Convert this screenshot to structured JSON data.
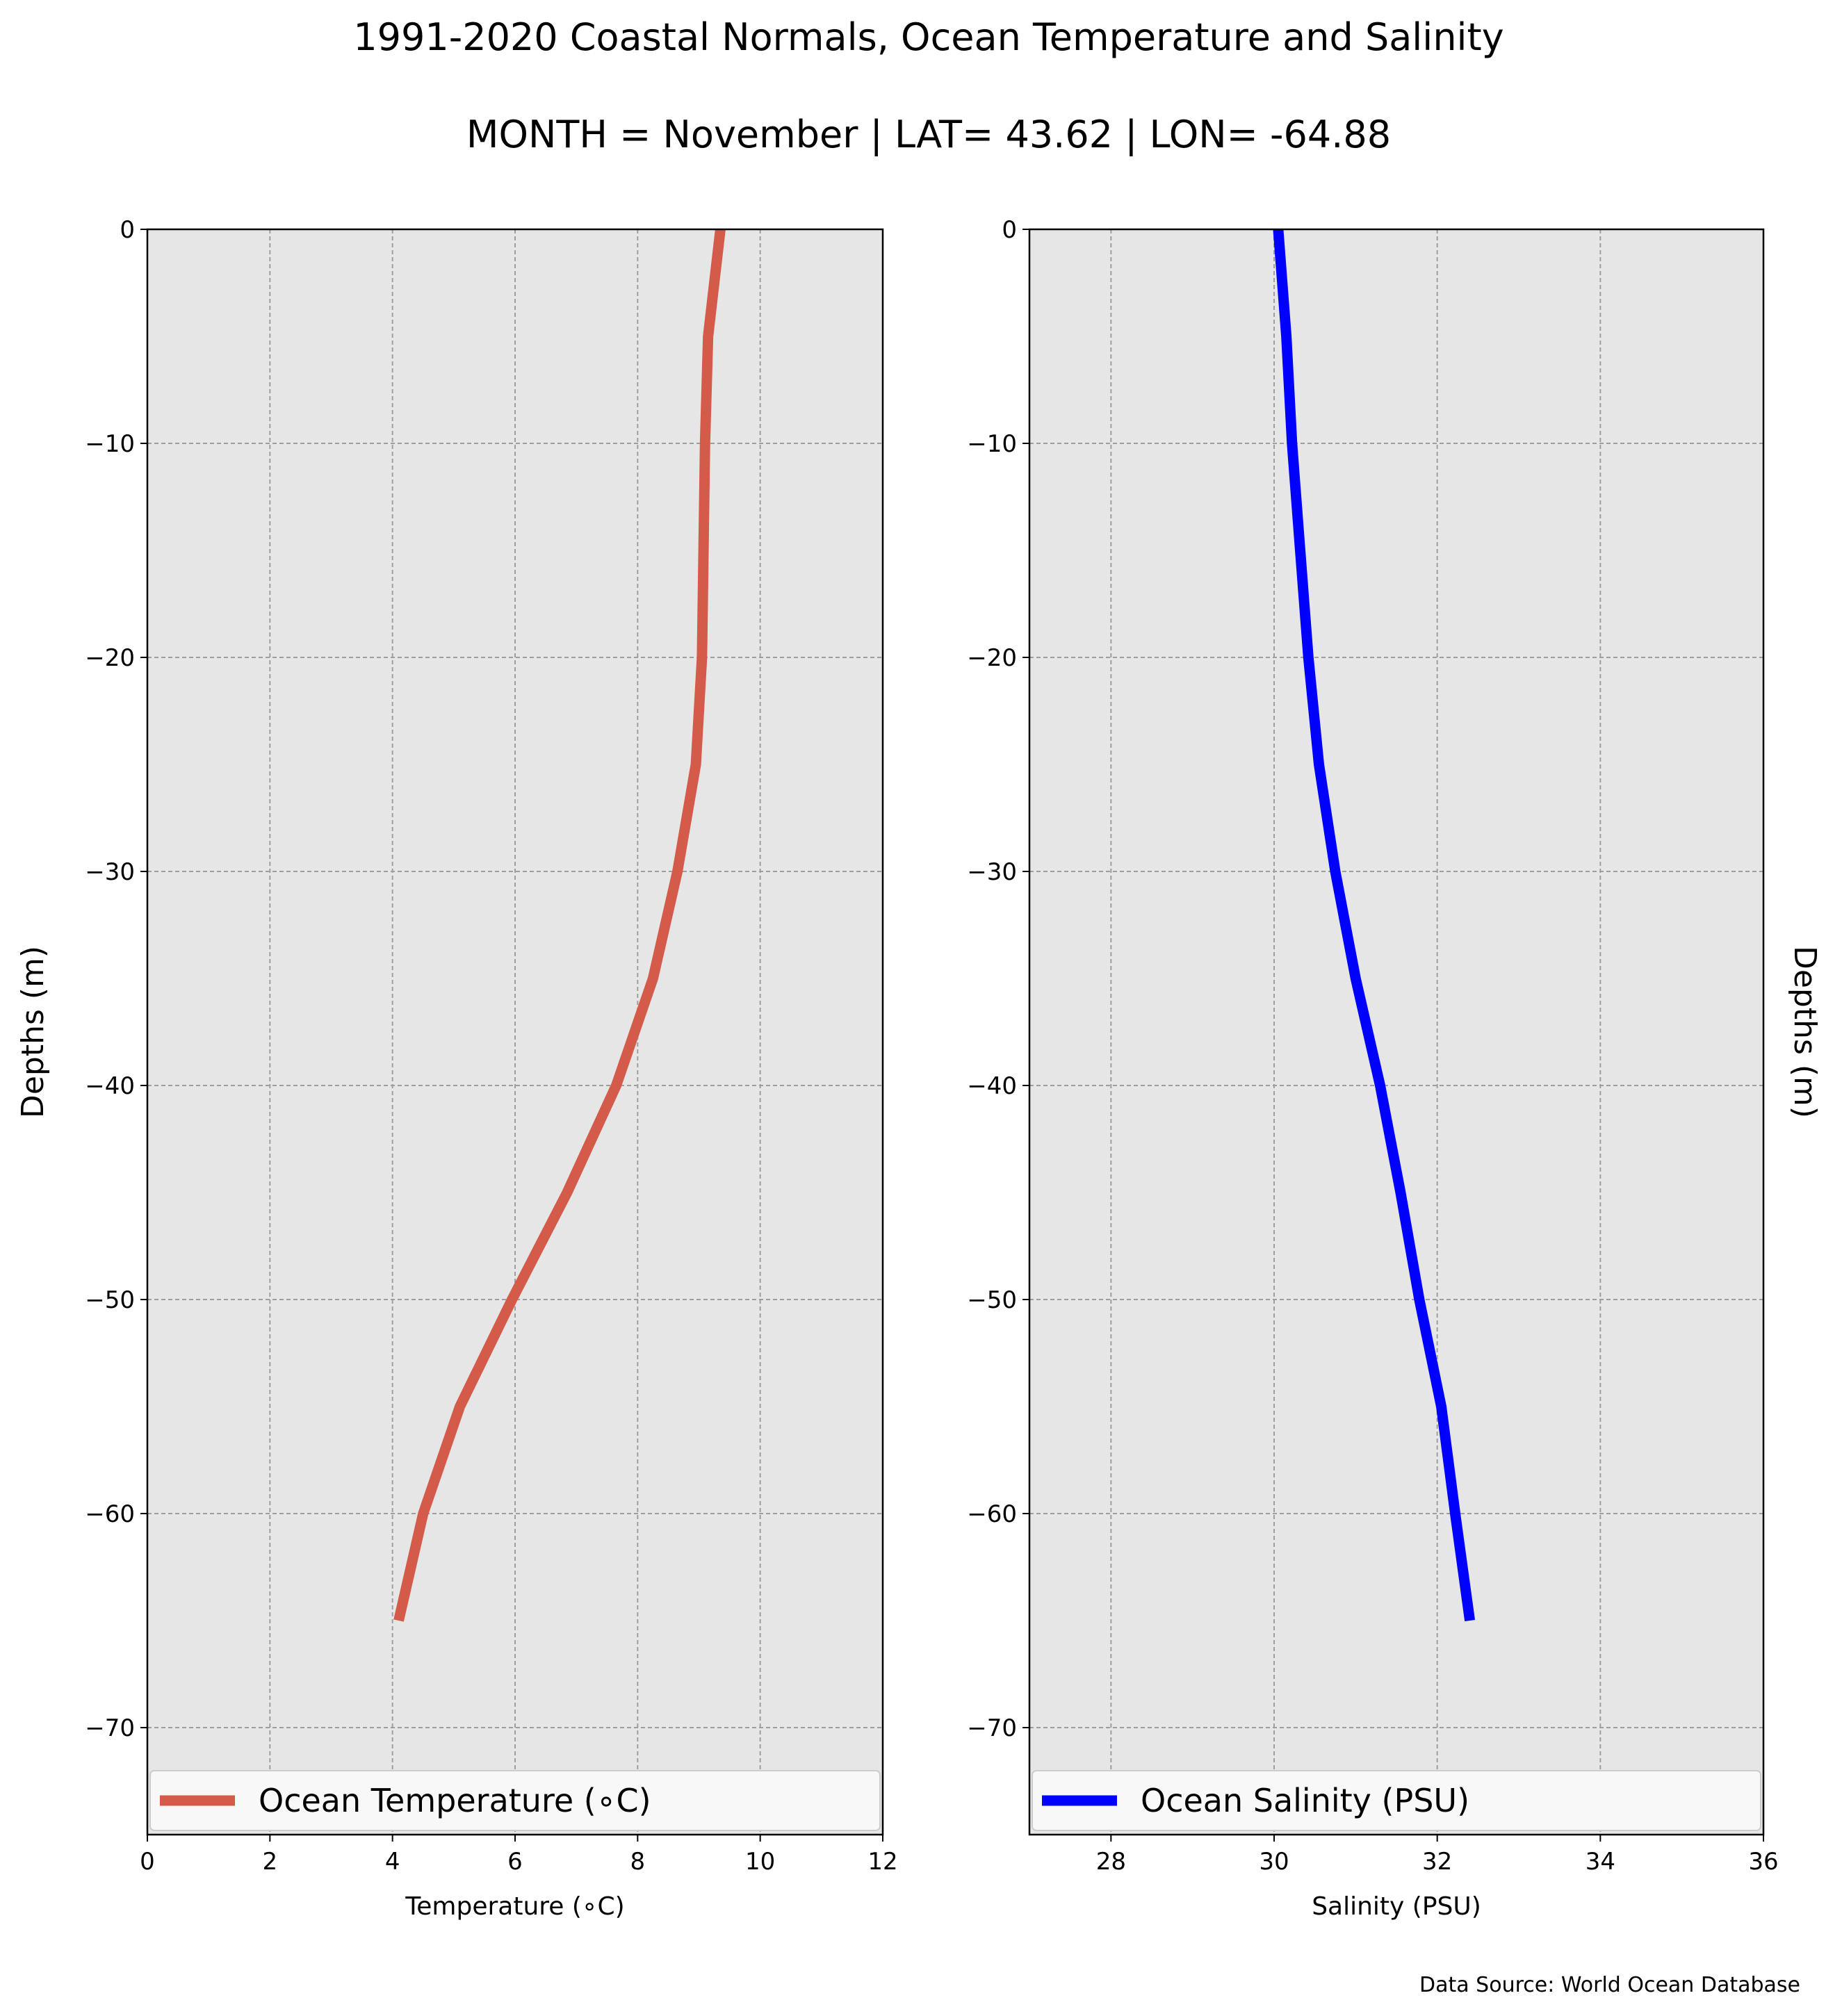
{
  "figure": {
    "title": "1991-2020 Coastal Normals, Ocean Temperature and Salinity",
    "subtitle": "MONTH = November | LAT= 43.62 | LON= -64.88",
    "source": "Data Source: World Ocean Database"
  },
  "chart_data": [
    {
      "type": "line",
      "xlabel": "Temperature ($^\\circ$C)",
      "xlabel_display": "Temperature (∘C)",
      "ylabel": "Depths (m)",
      "xlim": [
        0,
        12
      ],
      "ylim": [
        -75,
        0
      ],
      "x_ticks": [
        0,
        2,
        4,
        6,
        8,
        10,
        12
      ],
      "y_ticks": [
        0,
        -10,
        -20,
        -30,
        -40,
        -50,
        -60,
        -70
      ],
      "y_tick_labels": [
        "0",
        "−10",
        "−20",
        "−30",
        "−40",
        "−50",
        "−60",
        "−70"
      ],
      "grid": true,
      "legend_position": "bottom",
      "series": [
        {
          "name": "Ocean Temperature (∘C)",
          "color": "#d45a4a",
          "x": [
            9.35,
            9.15,
            9.1,
            9.05,
            8.95,
            8.65,
            8.25,
            7.65,
            6.85,
            5.95,
            5.1,
            4.5,
            4.1
          ],
          "y": [
            0,
            -5,
            -10,
            -20,
            -25,
            -30,
            -35,
            -40,
            -45,
            -50,
            -55,
            -60,
            -65
          ]
        }
      ]
    },
    {
      "type": "line",
      "xlabel": "Salinity (PSU)",
      "ylabel": "Depths (m)",
      "xlim": [
        27,
        36
      ],
      "ylim": [
        -75,
        0
      ],
      "x_ticks": [
        28,
        30,
        32,
        34,
        36
      ],
      "y_ticks": [
        0,
        -10,
        -20,
        -30,
        -40,
        -50,
        -60,
        -70
      ],
      "y_tick_labels": [
        "0",
        "−10",
        "−20",
        "−30",
        "−40",
        "−50",
        "−60",
        "−70"
      ],
      "grid": true,
      "legend_position": "bottom",
      "series": [
        {
          "name": "Ocean Salinity (PSU)",
          "color": "#0000ff",
          "x": [
            30.05,
            30.15,
            30.22,
            30.32,
            30.42,
            30.55,
            30.75,
            31.0,
            31.3,
            31.55,
            31.78,
            32.05,
            32.22,
            32.4
          ],
          "y": [
            0,
            -5,
            -10,
            -15,
            -20,
            -25,
            -30,
            -35,
            -40,
            -45,
            -50,
            -55,
            -60,
            -65
          ]
        }
      ]
    }
  ]
}
